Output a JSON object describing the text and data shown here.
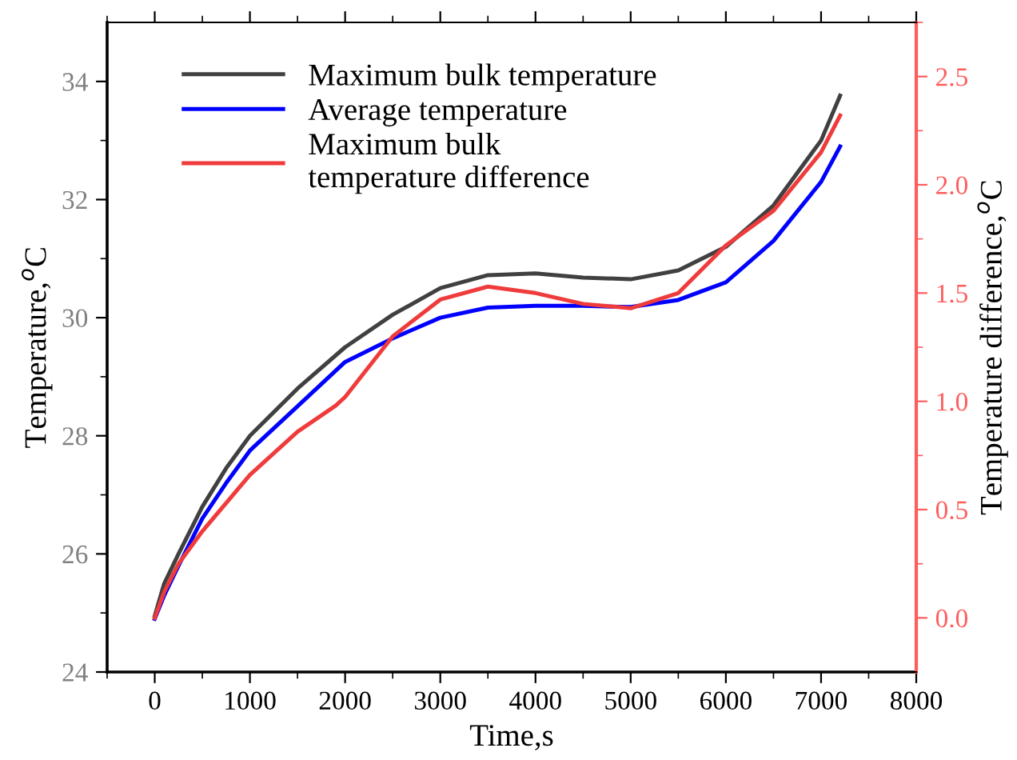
{
  "chart_data": {
    "type": "line",
    "xlabel": "Time,s",
    "ylabel": "Temperature,$^{o}$C",
    "y2label": "Temperature difference,$^{o}$C",
    "xlim": [
      -500,
      8000
    ],
    "xticks": [
      0,
      1000,
      2000,
      3000,
      4000,
      5000,
      6000,
      7000,
      8000
    ],
    "ylim": [
      24,
      35
    ],
    "yticks": [
      24,
      26,
      28,
      30,
      32,
      34
    ],
    "y2lim": [
      -0.25,
      2.75
    ],
    "y2ticks": [
      {
        "value": 0,
        "label": "0.0"
      },
      {
        "value": 0.5,
        "label": "0.5"
      },
      {
        "value": 1,
        "label": "1.0"
      },
      {
        "value": 1.5,
        "label": "1.5"
      },
      {
        "value": 2,
        "label": "2.0"
      },
      {
        "value": 2.5,
        "label": "2.5"
      }
    ],
    "x": [
      0,
      100,
      250,
      500,
      750,
      1000,
      1500,
      2000,
      2500,
      3000,
      3500,
      4000,
      4500,
      5000,
      5500,
      6000,
      6500,
      7000,
      7200
    ],
    "legend": "top left",
    "grid": false,
    "marker": "none",
    "line_style": "solid",
    "series": [
      {
        "name": "Maximum bulk temperature",
        "color": "#404040",
        "values": [
          24.95,
          25.5,
          26.0,
          26.8,
          27.45,
          28.0,
          28.8,
          29.5,
          30.05,
          30.5,
          30.72,
          30.75,
          30.68,
          30.65,
          30.8,
          31.2,
          31.9,
          33.0,
          33.76
        ]
      },
      {
        "name": "Average temperature",
        "color": "#0000ff",
        "values": [
          24.9,
          25.3,
          25.8,
          26.6,
          27.2,
          27.75,
          28.5,
          29.25,
          29.65,
          30.0,
          30.17,
          30.2,
          30.2,
          30.18,
          30.3,
          30.6,
          31.3,
          32.3,
          32.9
        ]
      },
      {
        "name": "Maximum bulk\ntemperature difference",
        "color": "#ef3b3b",
        "axis": "y2",
        "x": [
          0,
          100,
          250,
          500,
          1000,
          1500,
          1900,
          2000,
          2500,
          3000,
          3500,
          4000,
          4500,
          5000,
          5500,
          6000,
          6500,
          7000,
          7200
        ],
        "values": [
          0.0,
          0.12,
          0.25,
          0.4,
          0.66,
          0.86,
          0.98,
          1.02,
          1.3,
          1.47,
          1.53,
          1.5,
          1.45,
          1.43,
          1.5,
          1.72,
          1.88,
          2.15,
          2.32
        ]
      }
    ]
  }
}
